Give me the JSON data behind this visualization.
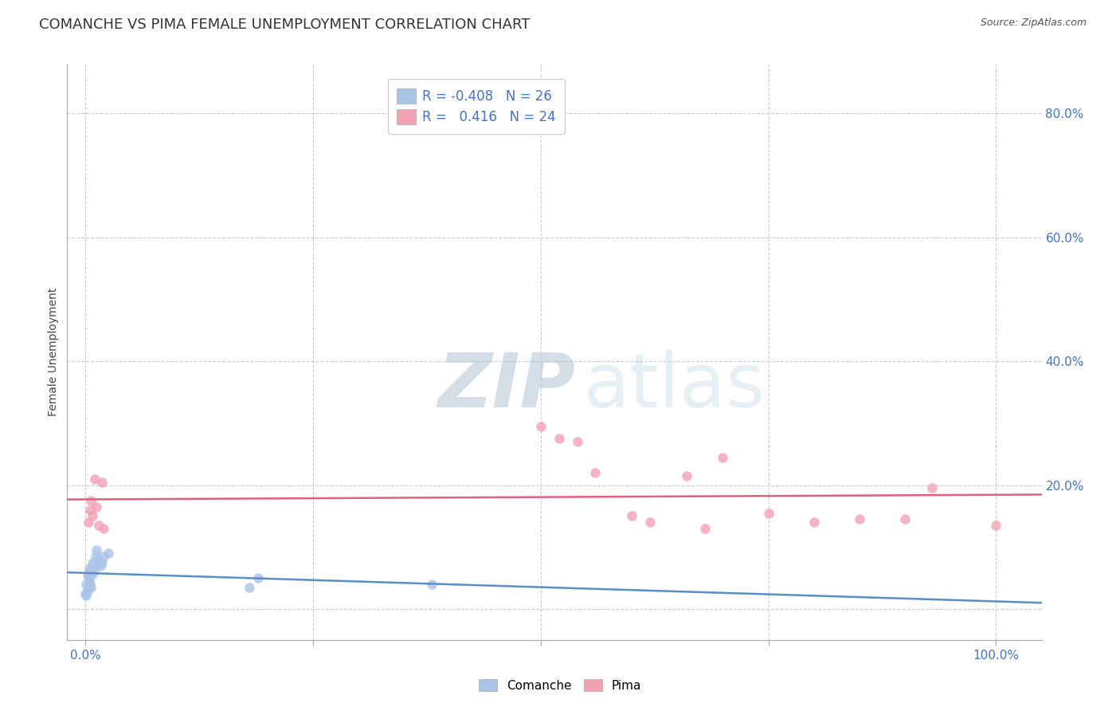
{
  "title": "COMANCHE VS PIMA FEMALE UNEMPLOYMENT CORRELATION CHART",
  "source": "Source: ZipAtlas.com",
  "ylabel": "Female Unemployment",
  "background_color": "#ffffff",
  "comanche_color": "#aac4e8",
  "pima_color": "#f4a0b5",
  "comanche_line_color": "#5b8ec4",
  "pima_line_color": "#e06080",
  "comanche_R": -0.408,
  "comanche_N": 26,
  "pima_R": 0.416,
  "pima_N": 24,
  "comanche_x": [
    0.0,
    0.001,
    0.001,
    0.002,
    0.002,
    0.003,
    0.003,
    0.004,
    0.004,
    0.005,
    0.005,
    0.006,
    0.007,
    0.008,
    0.009,
    0.01,
    0.011,
    0.012,
    0.014,
    0.016,
    0.018,
    0.02,
    0.025,
    0.18,
    0.19,
    0.38
  ],
  "comanche_y": [
    0.025,
    0.022,
    0.04,
    0.03,
    0.055,
    0.035,
    0.05,
    0.045,
    0.065,
    0.04,
    0.06,
    0.035,
    0.055,
    0.075,
    0.06,
    0.07,
    0.085,
    0.095,
    0.08,
    0.07,
    0.075,
    0.085,
    0.09,
    0.035,
    0.05,
    0.04
  ],
  "pima_x": [
    0.003,
    0.005,
    0.006,
    0.008,
    0.01,
    0.012,
    0.015,
    0.018,
    0.02,
    0.5,
    0.52,
    0.54,
    0.56,
    0.6,
    0.62,
    0.66,
    0.68,
    0.7,
    0.75,
    0.8,
    0.85,
    0.9,
    0.93,
    1.0
  ],
  "pima_y": [
    0.14,
    0.16,
    0.175,
    0.15,
    0.21,
    0.165,
    0.135,
    0.205,
    0.13,
    0.295,
    0.275,
    0.27,
    0.22,
    0.15,
    0.14,
    0.215,
    0.13,
    0.245,
    0.155,
    0.14,
    0.145,
    0.145,
    0.195,
    0.135
  ],
  "xlim": [
    -0.02,
    1.05
  ],
  "ylim": [
    -0.05,
    0.88
  ],
  "xticks": [
    0.0,
    0.25,
    0.5,
    0.75,
    1.0
  ],
  "xticklabels_left": "0.0%",
  "xticklabels_right": "100.0%",
  "yticks": [
    0.0,
    0.2,
    0.4,
    0.6,
    0.8
  ],
  "yticklabels": [
    "",
    "20.0%",
    "40.0%",
    "60.0%",
    "80.0%"
  ],
  "grid_color": "#cccccc",
  "axis_label_color": "#4472c4",
  "title_fontsize": 13,
  "tick_fontsize": 11,
  "marker_size": 9
}
